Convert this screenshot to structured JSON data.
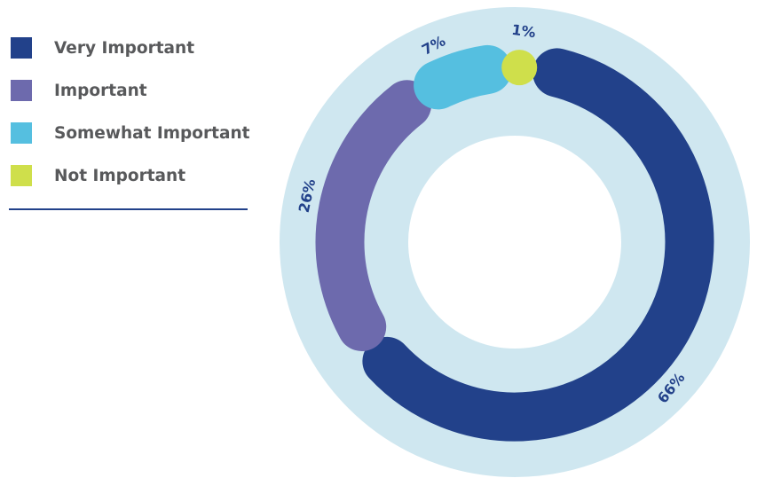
{
  "chart_data": {
    "type": "pie",
    "categories": [
      "Very Important",
      "Important",
      "Somewhat Important",
      "Not Important"
    ],
    "values": [
      66,
      26,
      7,
      1
    ],
    "value_labels": [
      "66%",
      "26%",
      "7%",
      "1%"
    ],
    "colors": [
      "#22418a",
      "#6d6aad",
      "#55bfe0",
      "#cfdf4b"
    ],
    "background_ring_color": "#cfe7f0",
    "label_color": "#22418a",
    "legend_placement": "left"
  },
  "legend": {
    "items": [
      {
        "label": "Very Important",
        "color": "#22418a"
      },
      {
        "label": "Important",
        "color": "#6d6aad"
      },
      {
        "label": "Somewhat Important",
        "color": "#55bfe0"
      },
      {
        "label": "Not Important",
        "color": "#cfdf4b"
      }
    ],
    "divider_color": "#22418a"
  }
}
